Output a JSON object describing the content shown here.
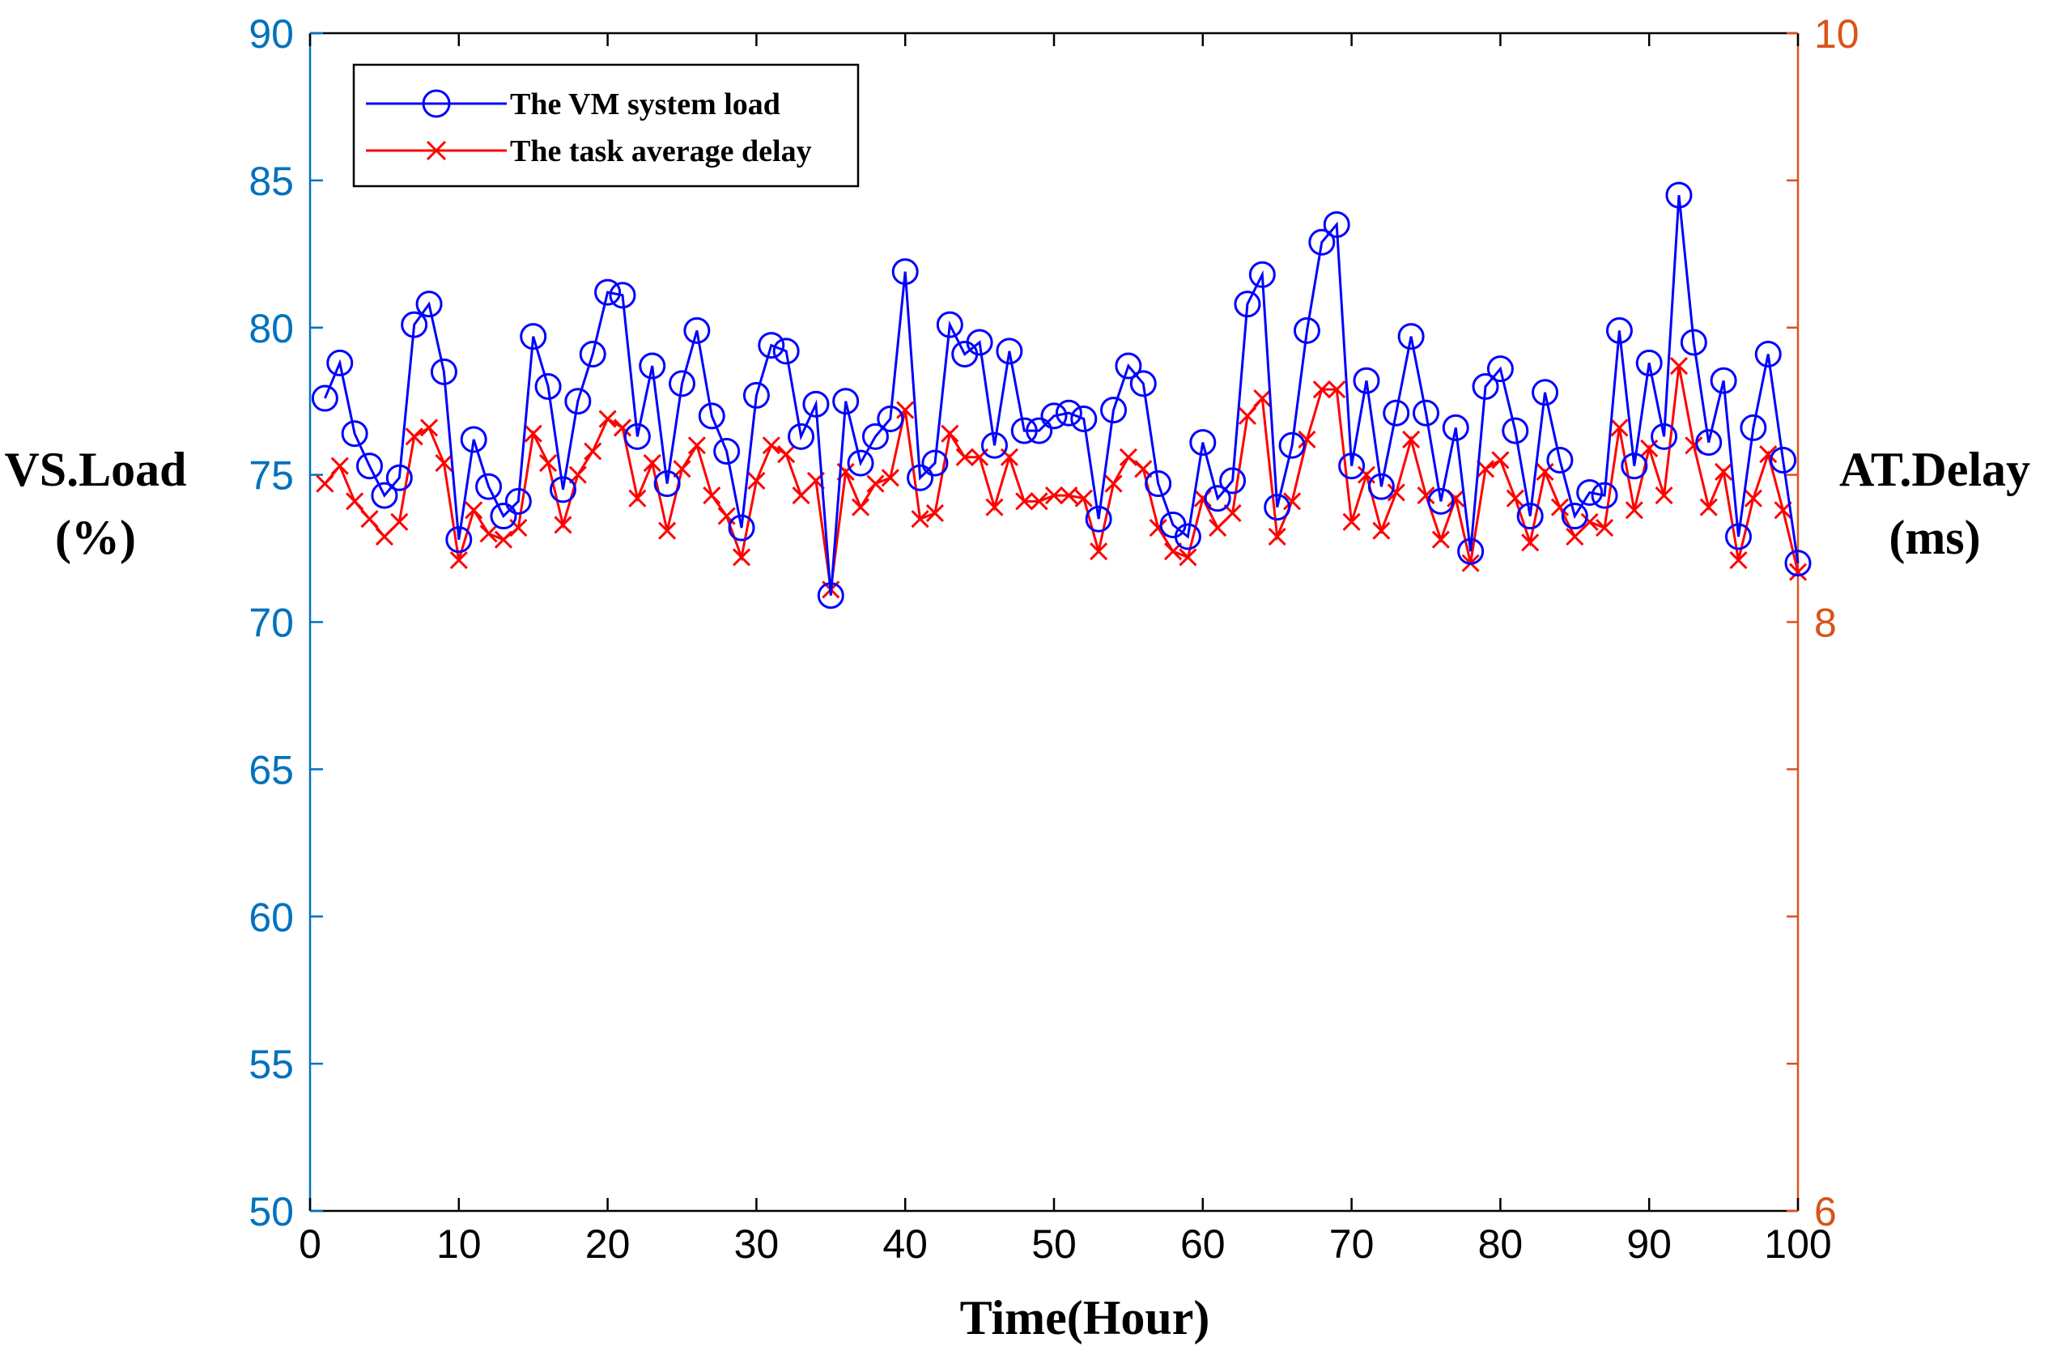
{
  "chart_data": {
    "type": "line",
    "x": [
      1,
      2,
      3,
      4,
      5,
      6,
      7,
      8,
      9,
      10,
      11,
      12,
      13,
      14,
      15,
      16,
      17,
      18,
      19,
      20,
      21,
      22,
      23,
      24,
      25,
      26,
      27,
      28,
      29,
      30,
      31,
      32,
      33,
      34,
      35,
      36,
      37,
      38,
      39,
      40,
      41,
      42,
      43,
      44,
      45,
      46,
      47,
      48,
      49,
      50,
      51,
      52,
      53,
      54,
      55,
      56,
      57,
      58,
      59,
      60,
      61,
      62,
      63,
      64,
      65,
      66,
      67,
      68,
      69,
      70,
      71,
      72,
      73,
      74,
      75,
      76,
      77,
      78,
      79,
      80,
      81,
      82,
      83,
      84,
      85,
      86,
      87,
      88,
      89,
      90,
      91,
      92,
      93,
      94,
      95,
      96,
      97,
      98,
      99,
      100
    ],
    "series": [
      {
        "name": "The VM system load",
        "axis": "left",
        "color": "#0000FF",
        "marker": "circle",
        "values": [
          77.6,
          78.8,
          76.4,
          75.3,
          74.3,
          74.9,
          80.1,
          80.8,
          78.5,
          72.8,
          76.2,
          74.6,
          73.6,
          74.1,
          79.7,
          78.0,
          74.5,
          77.5,
          79.1,
          81.2,
          81.1,
          76.3,
          78.7,
          74.7,
          78.1,
          79.9,
          77.0,
          75.8,
          73.2,
          77.7,
          79.4,
          79.2,
          76.3,
          77.4,
          70.9,
          77.5,
          75.4,
          76.3,
          76.9,
          81.9,
          74.9,
          75.4,
          80.1,
          79.1,
          79.5,
          76.0,
          79.2,
          76.5,
          76.5,
          77.0,
          77.1,
          76.9,
          73.5,
          77.2,
          78.7,
          78.1,
          74.7,
          73.3,
          72.9,
          76.1,
          74.2,
          74.8,
          80.8,
          81.8,
          73.9,
          76.0,
          79.9,
          82.9,
          83.5,
          75.3,
          78.2,
          74.6,
          77.1,
          79.7,
          77.1,
          74.1,
          76.6,
          72.4,
          78.0,
          78.6,
          76.5,
          73.6,
          77.8,
          75.5,
          73.6,
          74.4,
          74.3,
          79.9,
          75.3,
          78.8,
          76.3,
          84.5,
          79.5,
          76.1,
          78.2,
          72.9,
          76.6,
          79.1,
          75.5,
          72.0
        ]
      },
      {
        "name": "The task average delay",
        "axis": "right",
        "color": "#FF0000",
        "marker": "x",
        "values": [
          8.47,
          8.53,
          8.41,
          8.35,
          8.29,
          8.34,
          8.63,
          8.66,
          8.54,
          8.21,
          8.38,
          8.3,
          8.28,
          8.32,
          8.64,
          8.54,
          8.33,
          8.5,
          8.58,
          8.69,
          8.66,
          8.42,
          8.54,
          8.31,
          8.52,
          8.6,
          8.43,
          8.36,
          8.22,
          8.48,
          8.6,
          8.57,
          8.43,
          8.48,
          8.11,
          8.51,
          8.39,
          8.47,
          8.49,
          8.72,
          8.35,
          8.37,
          8.64,
          8.56,
          8.56,
          8.39,
          8.56,
          8.41,
          8.41,
          8.43,
          8.43,
          8.42,
          8.24,
          8.47,
          8.56,
          8.52,
          8.32,
          8.24,
          8.22,
          8.42,
          8.32,
          8.37,
          8.7,
          8.76,
          8.29,
          8.41,
          8.62,
          8.79,
          8.79,
          8.34,
          8.5,
          8.31,
          8.44,
          8.62,
          8.43,
          8.28,
          8.42,
          8.2,
          8.52,
          8.55,
          8.42,
          8.27,
          8.51,
          8.39,
          8.29,
          8.34,
          8.32,
          8.66,
          8.38,
          8.59,
          8.43,
          8.87,
          8.6,
          8.39,
          8.51,
          8.21,
          8.42,
          8.57,
          8.38,
          8.17
        ]
      }
    ],
    "xlabel": "Time(Hour)",
    "ylabel": [
      "VS.Load",
      "(%)"
    ],
    "y2label": [
      "AT.Delay",
      "(ms)"
    ],
    "xlim": [
      0,
      100
    ],
    "ylim": [
      50,
      90
    ],
    "y2lim": [
      6,
      10
    ],
    "xticks": [
      "0",
      "10",
      "20",
      "30",
      "40",
      "50",
      "60",
      "70",
      "80",
      "90",
      "100"
    ],
    "yticks": [
      "50",
      "55",
      "60",
      "65",
      "70",
      "75",
      "80",
      "85",
      "90"
    ],
    "y2ticks": [
      "6",
      "8",
      "10"
    ],
    "grid": false,
    "legend_position": "top-left",
    "axis_colors": {
      "left": "#0072BD",
      "right": "#D95319"
    }
  }
}
